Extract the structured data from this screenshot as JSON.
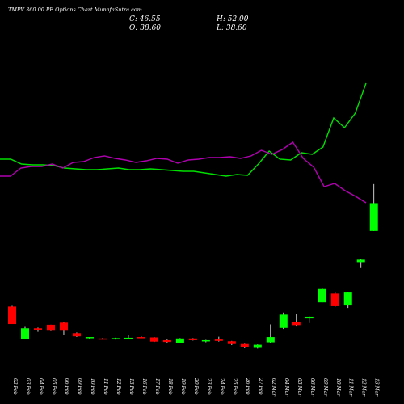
{
  "chart_data": {
    "type": "candlestick",
    "title": "TMPV 360.00  PE Options  Chart MunafaSutra.com",
    "ohlc_readout": {
      "close": "C: 46.55",
      "high": "H: 52.00",
      "open": "O: 38.60",
      "low": "L: 38.60"
    },
    "dates": [
      "02 Feb",
      "03 Feb",
      "04 Feb",
      "05 Feb",
      "06 Feb",
      "09 Feb",
      "10 Feb",
      "11 Feb",
      "12 Feb",
      "13 Feb",
      "16 Feb",
      "17 Feb",
      "18 Feb",
      "19 Feb",
      "20 Feb",
      "23 Feb",
      "24 Feb",
      "25 Feb",
      "26 Feb",
      "27 Feb",
      "02 Mar",
      "04 Mar",
      "05 Mar",
      "06 Mar",
      "09 Mar",
      "10 Mar",
      "11 Mar",
      "12 Mar",
      "13 Mar"
    ],
    "candles": [
      {
        "open": 17.0,
        "high": 17.2,
        "low": 12.0,
        "close": 12.0
      },
      {
        "open": 7.8,
        "high": 11.2,
        "low": 7.8,
        "close": 10.8
      },
      {
        "open": 10.8,
        "high": 11.0,
        "low": 9.8,
        "close": 10.4
      },
      {
        "open": 11.8,
        "high": 11.8,
        "low": 10.0,
        "close": 10.1
      },
      {
        "open": 12.4,
        "high": 12.6,
        "low": 8.8,
        "close": 10.1
      },
      {
        "open": 9.4,
        "high": 9.6,
        "low": 8.3,
        "close": 8.5
      },
      {
        "open": 8.0,
        "high": 8.3,
        "low": 7.8,
        "close": 8.3
      },
      {
        "open": 7.9,
        "high": 8.0,
        "low": 7.6,
        "close": 7.8
      },
      {
        "open": 7.8,
        "high": 8.1,
        "low": 7.6,
        "close": 8.0
      },
      {
        "open": 8.0,
        "high": 8.8,
        "low": 7.7,
        "close": 8.1
      },
      {
        "open": 8.3,
        "high": 8.5,
        "low": 8.0,
        "close": 8.0
      },
      {
        "open": 8.2,
        "high": 8.3,
        "low": 6.9,
        "close": 7.0
      },
      {
        "open": 7.4,
        "high": 7.6,
        "low": 6.7,
        "close": 6.9
      },
      {
        "open": 6.7,
        "high": 8.0,
        "low": 6.6,
        "close": 7.9
      },
      {
        "open": 7.9,
        "high": 8.0,
        "low": 7.3,
        "close": 7.4
      },
      {
        "open": 7.1,
        "high": 7.5,
        "low": 6.8,
        "close": 7.4
      },
      {
        "open": 7.6,
        "high": 8.4,
        "low": 7.0,
        "close": 7.2
      },
      {
        "open": 7.1,
        "high": 7.2,
        "low": 6.0,
        "close": 6.3
      },
      {
        "open": 6.3,
        "high": 6.4,
        "low": 5.1,
        "close": 5.4
      },
      {
        "open": 5.2,
        "high": 6.2,
        "low": 5.0,
        "close": 6.1
      },
      {
        "open": 6.8,
        "high": 11.9,
        "low": 6.6,
        "close": 8.3
      },
      {
        "open": 10.9,
        "high": 15.3,
        "low": 10.6,
        "close": 14.7
      },
      {
        "open": 12.7,
        "high": 14.9,
        "low": 11.3,
        "close": 11.7
      },
      {
        "open": 13.6,
        "high": 14.2,
        "low": 12.3,
        "close": 14.1
      },
      {
        "open": 18.2,
        "high": 22.2,
        "low": 18.2,
        "close": 22.0
      },
      {
        "open": 20.7,
        "high": 21.1,
        "low": 16.9,
        "close": 17.1
      },
      {
        "open": 17.3,
        "high": 21.2,
        "low": 16.6,
        "close": 21.0
      },
      {
        "open": 29.7,
        "high": 30.7,
        "low": 28.0,
        "close": 30.4
      },
      {
        "open": 38.6,
        "high": 52.0,
        "low": 38.6,
        "close": 46.55
      }
    ],
    "green_line": [
      61.0,
      61.0,
      64.0,
      64.5,
      64.5,
      65.0,
      66.5,
      67.0,
      67.5,
      67.5,
      67.0,
      66.5,
      67.5,
      67.5,
      67.0,
      67.5,
      68.0,
      68.5,
      68.5,
      69.5,
      70.5,
      71.5,
      70.5,
      71.0,
      64.0,
      56.0,
      61.0,
      61.5,
      57.0,
      58.0,
      53.5,
      35.5,
      41.5,
      32.5,
      14.0
    ],
    "magenta_line": [
      71.5,
      71.5,
      66.5,
      65.5,
      65.5,
      64.0,
      66.5,
      63.0,
      62.5,
      60.0,
      59.0,
      60.5,
      61.5,
      63.0,
      62.0,
      60.5,
      61.0,
      63.5,
      61.5,
      61.0,
      60.0,
      60.0,
      59.5,
      60.5,
      59.0,
      55.5,
      58.0,
      55.0,
      50.5,
      60.5,
      66.0,
      78.0,
      76.0,
      80.5,
      84.0,
      88.0
    ],
    "colors": {
      "background": "#000000",
      "up": "#00ff00",
      "down": "#ff0000",
      "wick": "#ffffff",
      "green_line": "#00e000",
      "magenta_line": "#b000b0"
    }
  }
}
